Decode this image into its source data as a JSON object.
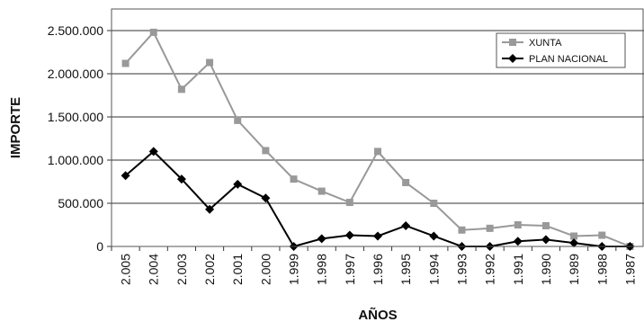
{
  "chart_data": {
    "type": "line",
    "title": "",
    "xlabel": "AÑOS",
    "ylabel": "IMPORTE",
    "ylim": [
      0,
      2750000
    ],
    "y_ticks": [
      0,
      500000,
      1000000,
      1500000,
      2000000,
      2500000
    ],
    "y_tick_labels": [
      "0",
      "500.000",
      "1.000.000",
      "1.500.000",
      "2.000.000",
      "2.500.000"
    ],
    "grid": true,
    "legend_position": "top-right",
    "categories": [
      "2.005",
      "2.004",
      "2.003",
      "2.002",
      "2.001",
      "2.000",
      "1.999",
      "1.998",
      "1.997",
      "1.996",
      "1.995",
      "1.994",
      "1.993",
      "1.992",
      "1.991",
      "1.990",
      "1.989",
      "1.988",
      "1.987"
    ],
    "series": [
      {
        "name": "XUNTA",
        "color": "#999999",
        "marker": "square",
        "values": [
          2120000,
          2480000,
          1820000,
          2130000,
          1460000,
          1110000,
          780000,
          640000,
          510000,
          1100000,
          740000,
          500000,
          190000,
          210000,
          250000,
          240000,
          120000,
          130000,
          0
        ]
      },
      {
        "name": "PLAN NACIONAL",
        "color": "#000000",
        "marker": "diamond",
        "values": [
          820000,
          1100000,
          780000,
          430000,
          720000,
          560000,
          0,
          90000,
          130000,
          120000,
          240000,
          120000,
          0,
          0,
          60000,
          80000,
          40000,
          0,
          0
        ]
      }
    ]
  }
}
